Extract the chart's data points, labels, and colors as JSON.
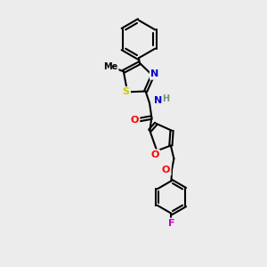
{
  "bg_color": "#ececec",
  "bond_color": "#000000",
  "atom_colors": {
    "N": "#0000cd",
    "O": "#ff0000",
    "S": "#cccc00",
    "F": "#cc00cc",
    "H": "#888888",
    "C": "#000000"
  }
}
